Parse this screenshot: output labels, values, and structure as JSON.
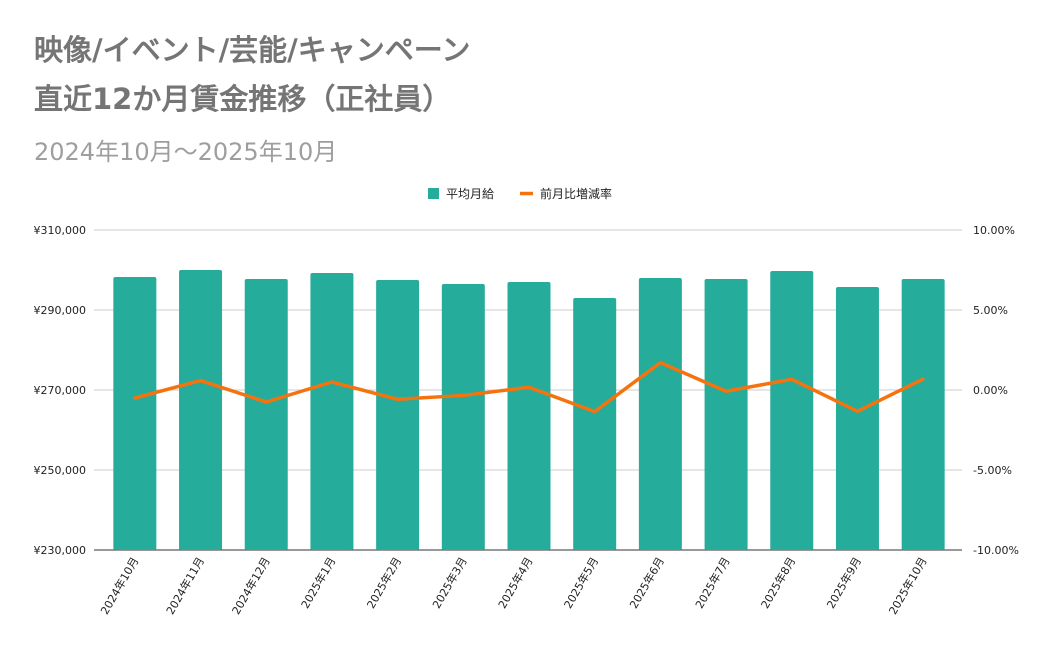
{
  "chart_data": {
    "type": "bar",
    "title": "映像/イベント/芸能/キャンペーン",
    "title_line2": "直近12か月賃金推移（正社員）",
    "subtitle": "2024年10月～2025年10月",
    "categories": [
      "2024年10月",
      "2024年11月",
      "2024年12月",
      "2025年1月",
      "2025年2月",
      "2025年3月",
      "2025年4月",
      "2025年5月",
      "2025年6月",
      "2025年7月",
      "2025年8月",
      "2025年9月",
      "2025年10月"
    ],
    "series": [
      {
        "name": "平均月給",
        "type": "bar",
        "axis": "left",
        "color": "#26ac9b",
        "values": [
          298250,
          300000,
          297750,
          299250,
          297500,
          296500,
          297000,
          293000,
          298000,
          297750,
          299750,
          295750,
          297750
        ]
      },
      {
        "name": "前月比増減率",
        "type": "line",
        "axis": "right",
        "color": "#f5730f",
        "values": [
          -0.5,
          0.59,
          -0.75,
          0.5,
          -0.58,
          -0.34,
          0.17,
          -1.35,
          1.71,
          -0.08,
          0.67,
          -1.33,
          0.68
        ]
      }
    ],
    "y_left": {
      "min": 230000,
      "max": 310000,
      "ticks": [
        "¥230,000",
        "¥250,000",
        "¥270,000",
        "¥290,000",
        "¥310,000"
      ]
    },
    "y_right": {
      "min": -10,
      "max": 10,
      "ticks": [
        "-10.00%",
        "-5.00%",
        "0.00%",
        "5.00%",
        "10.00%"
      ]
    },
    "grid": true,
    "legend_position": "top"
  }
}
